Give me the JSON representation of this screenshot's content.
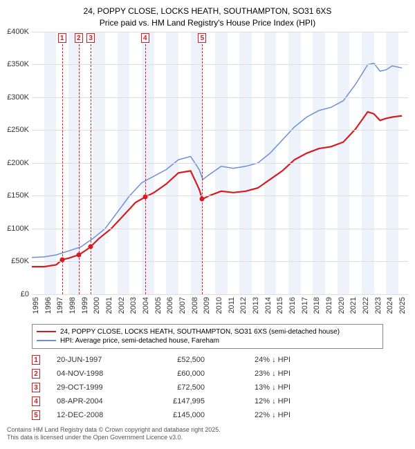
{
  "title_line1": "24, POPPY CLOSE, LOCKS HEATH, SOUTHAMPTON, SO31 6XS",
  "title_line2": "Price paid vs. HM Land Registry's House Price Index (HPI)",
  "chart": {
    "type": "line",
    "x_start": 1995,
    "x_end": 2025.8,
    "ylim": [
      0,
      400000
    ],
    "ytick_step": 50000,
    "ylabels": [
      "£0",
      "£50K",
      "£100K",
      "£150K",
      "£200K",
      "£250K",
      "£300K",
      "£350K",
      "£400K"
    ],
    "xticks": [
      1995,
      1996,
      1997,
      1998,
      1999,
      2000,
      2001,
      2002,
      2003,
      2004,
      2005,
      2006,
      2007,
      2008,
      2009,
      2010,
      2011,
      2012,
      2013,
      2014,
      2015,
      2016,
      2017,
      2018,
      2019,
      2020,
      2021,
      2022,
      2023,
      2024,
      2025
    ],
    "grid_color": "#dddddd",
    "band_color": "#eef3fb",
    "background_color": "#ffffff",
    "series": [
      {
        "name": "price_paid",
        "label": "24, POPPY CLOSE, LOCKS HEATH, SOUTHAMPTON, SO31 6XS (semi-detached house)",
        "color": "#d71920",
        "width": 2.2,
        "points": [
          [
            1995.0,
            42000
          ],
          [
            1996.0,
            42000
          ],
          [
            1997.0,
            45000
          ],
          [
            1997.47,
            52500
          ],
          [
            1998.0,
            55000
          ],
          [
            1998.84,
            60000
          ],
          [
            1999.5,
            68000
          ],
          [
            1999.82,
            72500
          ],
          [
            2000.5,
            85000
          ],
          [
            2001.5,
            100000
          ],
          [
            2002.5,
            120000
          ],
          [
            2003.5,
            140000
          ],
          [
            2004.27,
            147995
          ],
          [
            2005.0,
            155000
          ],
          [
            2006.0,
            168000
          ],
          [
            2007.0,
            185000
          ],
          [
            2008.0,
            188000
          ],
          [
            2008.7,
            160000
          ],
          [
            2008.95,
            145000
          ],
          [
            2009.5,
            150000
          ],
          [
            2010.5,
            157000
          ],
          [
            2011.5,
            155000
          ],
          [
            2012.5,
            157000
          ],
          [
            2013.5,
            162000
          ],
          [
            2014.5,
            175000
          ],
          [
            2015.5,
            188000
          ],
          [
            2016.5,
            205000
          ],
          [
            2017.5,
            215000
          ],
          [
            2018.5,
            222000
          ],
          [
            2019.5,
            225000
          ],
          [
            2020.5,
            232000
          ],
          [
            2021.5,
            252000
          ],
          [
            2022.5,
            278000
          ],
          [
            2023.0,
            275000
          ],
          [
            2023.5,
            265000
          ],
          [
            2024.0,
            268000
          ],
          [
            2024.5,
            270000
          ],
          [
            2025.3,
            272000
          ]
        ]
      },
      {
        "name": "hpi",
        "label": "HPI: Average price, semi-detached house, Fareham",
        "color": "#6a8fd8",
        "width": 1.5,
        "points": [
          [
            1995.0,
            56000
          ],
          [
            1996.0,
            57000
          ],
          [
            1997.0,
            60000
          ],
          [
            1998.0,
            66000
          ],
          [
            1999.0,
            72000
          ],
          [
            2000.0,
            85000
          ],
          [
            2001.0,
            100000
          ],
          [
            2002.0,
            125000
          ],
          [
            2003.0,
            150000
          ],
          [
            2004.0,
            170000
          ],
          [
            2005.0,
            180000
          ],
          [
            2006.0,
            190000
          ],
          [
            2007.0,
            205000
          ],
          [
            2008.0,
            210000
          ],
          [
            2008.7,
            190000
          ],
          [
            2009.0,
            175000
          ],
          [
            2009.5,
            182000
          ],
          [
            2010.5,
            195000
          ],
          [
            2011.5,
            192000
          ],
          [
            2012.5,
            195000
          ],
          [
            2013.5,
            200000
          ],
          [
            2014.5,
            215000
          ],
          [
            2015.5,
            235000
          ],
          [
            2016.5,
            255000
          ],
          [
            2017.5,
            270000
          ],
          [
            2018.5,
            280000
          ],
          [
            2019.5,
            285000
          ],
          [
            2020.5,
            295000
          ],
          [
            2021.5,
            320000
          ],
          [
            2022.5,
            350000
          ],
          [
            2023.0,
            352000
          ],
          [
            2023.5,
            340000
          ],
          [
            2024.0,
            342000
          ],
          [
            2024.5,
            348000
          ],
          [
            2025.3,
            345000
          ]
        ]
      }
    ],
    "markers": [
      {
        "n": "1",
        "x": 1997.47,
        "y": 52500
      },
      {
        "n": "2",
        "x": 1998.84,
        "y": 60000
      },
      {
        "n": "3",
        "x": 1999.82,
        "y": 72500
      },
      {
        "n": "4",
        "x": 2004.27,
        "y": 147995
      },
      {
        "n": "5",
        "x": 2008.95,
        "y": 145000
      }
    ]
  },
  "sales": [
    {
      "n": "1",
      "date": "20-JUN-1997",
      "price": "£52,500",
      "delta": "24% ↓ HPI"
    },
    {
      "n": "2",
      "date": "04-NOV-1998",
      "price": "£60,000",
      "delta": "23% ↓ HPI"
    },
    {
      "n": "3",
      "date": "29-OCT-1999",
      "price": "£72,500",
      "delta": "13% ↓ HPI"
    },
    {
      "n": "4",
      "date": "08-APR-2004",
      "price": "£147,995",
      "delta": "12% ↓ HPI"
    },
    {
      "n": "5",
      "date": "12-DEC-2008",
      "price": "£145,000",
      "delta": "22% ↓ HPI"
    }
  ],
  "footer_line1": "Contains HM Land Registry data © Crown copyright and database right 2025.",
  "footer_line2": "This data is licensed under the Open Government Licence v3.0."
}
